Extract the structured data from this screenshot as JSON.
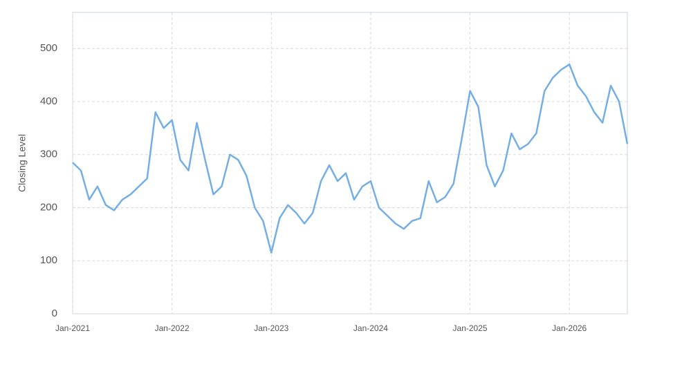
{
  "chart_data": {
    "type": "line",
    "y_label": "Closing Level",
    "x": [
      "2021-01",
      "2021-02",
      "2021-03",
      "2021-04",
      "2021-05",
      "2021-06",
      "2021-07",
      "2021-08",
      "2021-09",
      "2021-10",
      "2021-11",
      "2021-12",
      "2022-01",
      "2022-02",
      "2022-03",
      "2022-04",
      "2022-05",
      "2022-06",
      "2022-07",
      "2022-08",
      "2022-09",
      "2022-10",
      "2022-11",
      "2022-12",
      "2023-01",
      "2023-02",
      "2023-03",
      "2023-04",
      "2023-05",
      "2023-06",
      "2023-07",
      "2023-08",
      "2023-09",
      "2023-10",
      "2023-11",
      "2023-12",
      "2024-01",
      "2024-02",
      "2024-03",
      "2024-04",
      "2024-05",
      "2024-06",
      "2024-07",
      "2024-08",
      "2024-09",
      "2024-10",
      "2024-11",
      "2024-12",
      "2025-01",
      "2025-02",
      "2025-03",
      "2025-04",
      "2025-05",
      "2025-06",
      "2025-07",
      "2025-08",
      "2025-09",
      "2025-10",
      "2025-11",
      "2025-12",
      "2026-01",
      "2026-02",
      "2026-03",
      "2026-04",
      "2026-05",
      "2026-06",
      "2026-07",
      "2026-08"
    ],
    "series": [
      {
        "color": "#74aee6",
        "values": [
          285,
          270,
          215,
          240,
          205,
          195,
          215,
          225,
          240,
          255,
          380,
          350,
          365,
          290,
          270,
          360,
          290,
          225,
          240,
          300,
          290,
          260,
          200,
          175,
          115,
          180,
          205,
          190,
          170,
          190,
          250,
          280,
          250,
          265,
          215,
          240,
          250,
          200,
          185,
          170,
          160,
          175,
          180,
          250,
          210,
          220,
          245,
          330,
          420,
          390,
          280,
          240,
          270,
          340,
          310,
          320,
          340,
          420,
          445,
          460,
          470,
          430,
          410,
          380,
          360,
          430,
          400,
          320
        ]
      }
    ],
    "xlim": [
      "2021-01",
      "2026-08"
    ],
    "xticks": [
      {
        "value": "2021-01",
        "label": "Jan-2021"
      },
      {
        "value": "2022-01",
        "label": "Jan-2022"
      },
      {
        "value": "2023-01",
        "label": "Jan-2023"
      },
      {
        "value": "2024-01",
        "label": "Jan-2024"
      },
      {
        "value": "2025-01",
        "label": "Jan-2025"
      },
      {
        "value": "2026-01",
        "label": "Jan-2026"
      }
    ],
    "ylim": [
      0,
      568
    ],
    "yticks": [
      0,
      100,
      200,
      300,
      400,
      500
    ],
    "grid": true
  }
}
